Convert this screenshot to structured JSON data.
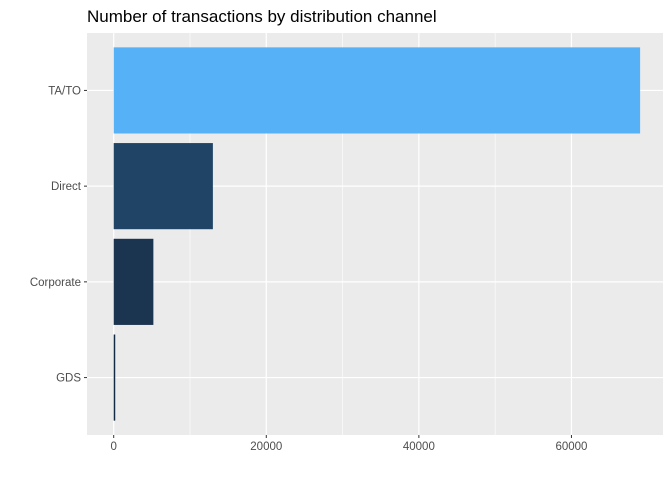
{
  "chart_data": {
    "type": "bar",
    "orientation": "horizontal",
    "title": "Number of transactions by distribution channel",
    "xlabel": "",
    "ylabel": "",
    "categories": [
      "TA/TO",
      "Direct",
      "Corporate",
      "GDS"
    ],
    "values": [
      69000,
      13000,
      5200,
      200
    ],
    "xlim": [
      -3500,
      72000
    ],
    "xticks": [
      0,
      20000,
      40000,
      60000
    ],
    "xtick_labels": [
      "0",
      "20000",
      "40000",
      "60000"
    ],
    "colors": [
      "#56B1F7",
      "#1F4466",
      "#1B3450",
      "#132B43"
    ],
    "panel_background": "#EBEBEB",
    "grid": true,
    "legend": "none"
  }
}
